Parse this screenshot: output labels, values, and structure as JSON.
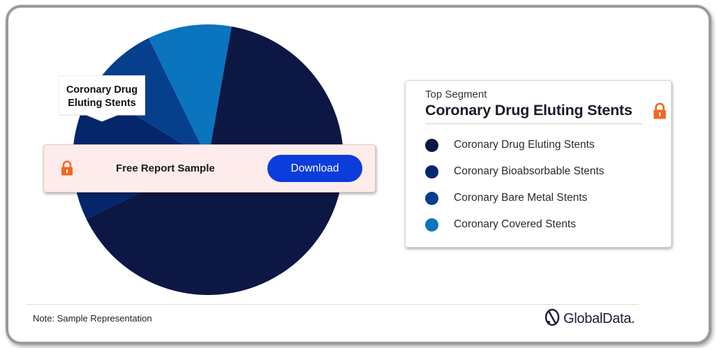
{
  "chart_data": {
    "type": "pie",
    "slices": [
      {
        "label": "Coronary Drug Eluting Stents",
        "value": 65,
        "color": "#0c1744"
      },
      {
        "label": "Coronary Bioabsorbable Stents",
        "value": 16,
        "color": "#05266b"
      },
      {
        "label": "Coronary Bare Metal Stents",
        "value": 9,
        "color": "#063f8c"
      },
      {
        "label": "Coronary Covered Stents",
        "value": 10,
        "color": "#0a74bf"
      }
    ],
    "start_angle_deg": 10,
    "callout_label": "Coronary Drug\nEluting Stents"
  },
  "sample_bar": {
    "title": "Free Report Sample",
    "button_label": "Download",
    "lock_color": "#f26722"
  },
  "panel": {
    "subtitle": "Top Segment",
    "title": "Coronary Drug Eluting Stents",
    "legend": [
      {
        "label": "Coronary Drug Eluting Stents",
        "color": "#0c1744"
      },
      {
        "label": "Coronary Bioabsorbable Stents",
        "color": "#05266b"
      },
      {
        "label": "Coronary Bare Metal Stents",
        "color": "#063f8c"
      },
      {
        "label": "Coronary Covered Stents",
        "color": "#0a74bf"
      }
    ]
  },
  "footer": {
    "note": "Note: Sample Representation",
    "logo_text": "GlobalData."
  },
  "icons": [
    "lock-icon",
    "globaldata-logo-icon"
  ]
}
